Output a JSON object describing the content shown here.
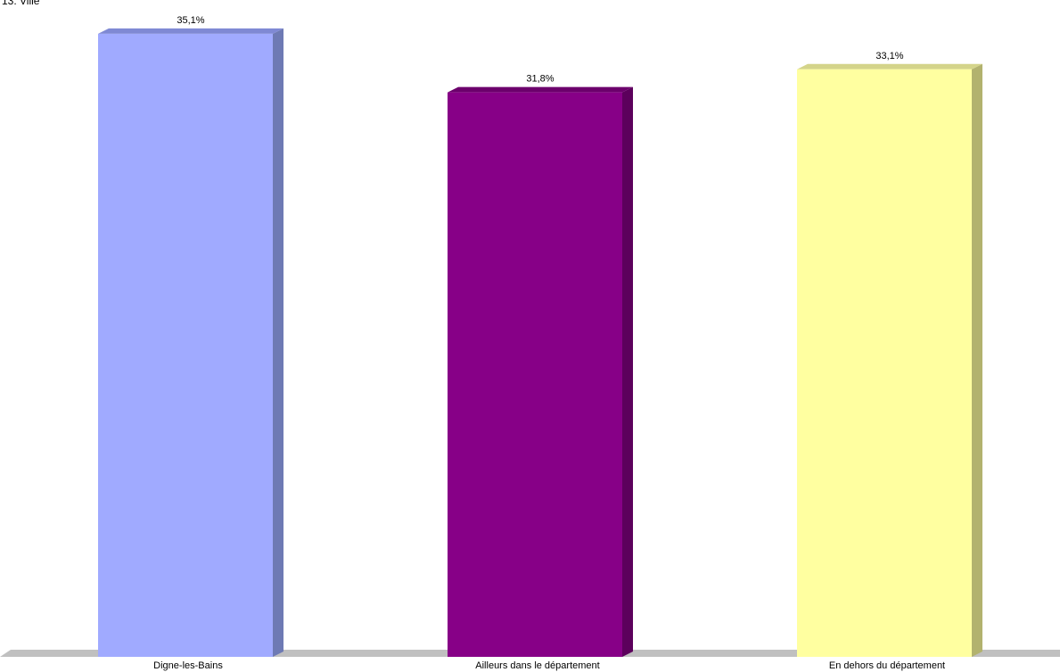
{
  "chart_data": {
    "type": "bar",
    "title": "13. Ville",
    "categories": [
      "Digne-les-Bains",
      "Ailleurs dans le département",
      "En dehors du département"
    ],
    "values": [
      35.1,
      31.8,
      33.1
    ],
    "value_labels": [
      "35,1%",
      "31,8%",
      "33,1%"
    ],
    "unit": "%",
    "ylim": [
      0,
      36
    ],
    "grid": false,
    "legend": "none",
    "style": "3d",
    "colors": {
      "front": [
        "#a0aaff",
        "#870087",
        "#ffffa0"
      ],
      "side": [
        "#6e7ab4",
        "#5c005c",
        "#b2b26e"
      ],
      "top": [
        "#7f89d4",
        "#6c006c",
        "#d4d48a"
      ],
      "floor": "#c0c0c0"
    }
  }
}
